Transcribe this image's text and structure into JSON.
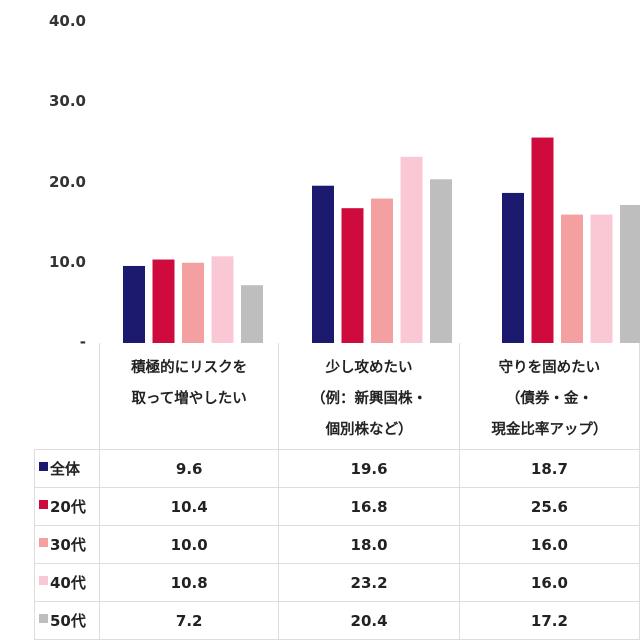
{
  "chart_data": {
    "type": "bar",
    "title": "",
    "xlabel": "",
    "ylabel": "",
    "ylim": [
      0,
      40
    ],
    "yticks": [
      "-",
      "10.0",
      "20.0",
      "30.0",
      "40.0"
    ],
    "grid": false,
    "legend": "table-left",
    "categories": [
      [
        "積極的にリスクを",
        "取って増やしたい"
      ],
      [
        "少し攻めたい",
        "（例：新興国株・",
        "個別株など）"
      ],
      [
        "守りを固めたい",
        "（債券・金・",
        "現金比率アップ）"
      ]
    ],
    "series": [
      {
        "name": "全体",
        "color": "#1c1a6e",
        "values": [
          9.6,
          19.6,
          18.7
        ],
        "labels": [
          "9.6",
          "19.6",
          "18.7"
        ]
      },
      {
        "name": "20代",
        "color": "#cf0a3c",
        "values": [
          10.4,
          16.8,
          25.6
        ],
        "labels": [
          "10.4",
          "16.8",
          "25.6"
        ]
      },
      {
        "name": "30代",
        "color": "#f5a0a0",
        "values": [
          10.0,
          18.0,
          16.0
        ],
        "labels": [
          "10.0",
          "18.0",
          "16.0"
        ]
      },
      {
        "name": "40代",
        "color": "#fac8d4",
        "values": [
          10.8,
          23.2,
          16.0
        ],
        "labels": [
          "10.8",
          "23.2",
          "16.0"
        ]
      },
      {
        "name": "50代",
        "color": "#bebebe",
        "values": [
          7.2,
          20.4,
          17.2
        ],
        "labels": [
          "7.2",
          "20.4",
          "17.2"
        ]
      }
    ]
  }
}
